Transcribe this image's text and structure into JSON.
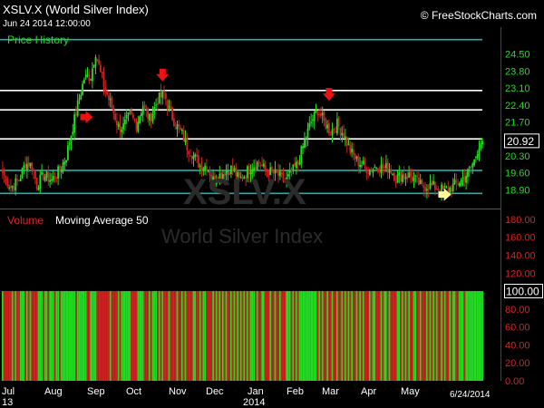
{
  "header": {
    "title": "XSLV.X (World Silver Index)",
    "timestamp": "Jun 24 2014 12:00:00",
    "brand": "© FreeStockCharts.com",
    "bottom_date": "6/24/2014"
  },
  "watermark": {
    "symbol": "XSLV.X",
    "name": "World Silver Index"
  },
  "colors": {
    "up": "#22dd22",
    "down": "#cc2222",
    "price_axis": "#22dd22",
    "volume_axis": "#dd2222",
    "cyan_line": "#21b0b0",
    "white_line": "#ffffff",
    "marker_red": "#ee1111",
    "marker_yellow": "#ffff99"
  },
  "chart_data": [
    {
      "type": "candlestick",
      "panel_label": "Price History",
      "y_ticks": [
        24.5,
        23.8,
        23.1,
        22.4,
        21.7,
        21.0,
        20.3,
        19.6,
        18.9
      ],
      "y_tick_labels": [
        "24.50",
        "23.80",
        "23.10",
        "22.40",
        "21.70",
        "21.00",
        "20.30",
        "19.60",
        "18.90"
      ],
      "ylim": [
        18.2,
        25.5
      ],
      "last_price": 20.92,
      "last_price_label": "20.92",
      "horizontal_lines": [
        {
          "value": 25.1,
          "color": "cyan"
        },
        {
          "value": 23.0,
          "color": "white"
        },
        {
          "value": 22.2,
          "color": "white"
        },
        {
          "value": 21.0,
          "color": "white"
        },
        {
          "value": 19.7,
          "color": "cyan"
        },
        {
          "value": 18.75,
          "color": "cyan"
        }
      ],
      "x_labels": [
        "Jul",
        "Aug",
        "Sep",
        "Oct",
        "Nov",
        "Dec",
        "Jan",
        "Feb",
        "Mar",
        "Apr",
        "May"
      ],
      "x_sublabels": [
        "13",
        "2014"
      ],
      "close_path": [
        [
          0,
          19.6
        ],
        [
          5,
          19.0
        ],
        [
          10,
          19.3
        ],
        [
          14,
          20.0
        ],
        [
          18,
          19.9
        ],
        [
          21,
          19.1
        ],
        [
          25,
          19.5
        ],
        [
          30,
          19.3
        ],
        [
          35,
          19.7
        ],
        [
          39,
          20.3
        ],
        [
          43,
          21.5
        ],
        [
          46,
          22.4
        ],
        [
          50,
          23.5
        ],
        [
          54,
          23.6
        ],
        [
          57,
          24.6
        ],
        [
          60,
          23.7
        ],
        [
          63,
          23.0
        ],
        [
          67,
          22.3
        ],
        [
          71,
          21.5
        ],
        [
          74,
          21.5
        ],
        [
          78,
          22.0
        ],
        [
          82,
          21.6
        ],
        [
          86,
          22.4
        ],
        [
          90,
          21.8
        ],
        [
          95,
          22.6
        ],
        [
          99,
          22.9
        ],
        [
          102,
          22.2
        ],
        [
          106,
          21.6
        ],
        [
          110,
          21.2
        ],
        [
          113,
          20.7
        ],
        [
          117,
          20.3
        ],
        [
          121,
          19.9
        ],
        [
          125,
          19.9
        ],
        [
          129,
          19.3
        ],
        [
          133,
          19.5
        ],
        [
          137,
          19.7
        ],
        [
          141,
          19.8
        ],
        [
          145,
          19.3
        ],
        [
          149,
          19.6
        ],
        [
          153,
          19.9
        ],
        [
          157,
          20.0
        ],
        [
          161,
          19.7
        ],
        [
          165,
          19.6
        ],
        [
          169,
          19.5
        ],
        [
          173,
          19.2
        ],
        [
          177,
          19.6
        ],
        [
          181,
          20.0
        ],
        [
          185,
          20.9
        ],
        [
          189,
          21.7
        ],
        [
          193,
          22.2
        ],
        [
          197,
          21.7
        ],
        [
          201,
          21.3
        ],
        [
          205,
          21.6
        ],
        [
          209,
          21.2
        ],
        [
          213,
          20.5
        ],
        [
          217,
          20.1
        ],
        [
          221,
          19.9
        ],
        [
          225,
          19.7
        ],
        [
          229,
          19.9
        ],
        [
          233,
          19.8
        ],
        [
          237,
          19.8
        ],
        [
          241,
          19.4
        ],
        [
          245,
          19.5
        ],
        [
          249,
          19.5
        ],
        [
          253,
          19.3
        ],
        [
          257,
          19.0
        ],
        [
          261,
          19.1
        ],
        [
          265,
          19.0
        ],
        [
          269,
          18.9
        ],
        [
          273,
          18.9
        ],
        [
          277,
          19.1
        ],
        [
          281,
          19.3
        ],
        [
          285,
          19.6
        ],
        [
          289,
          20.1
        ],
        [
          292,
          20.8
        ],
        [
          294,
          20.92
        ]
      ],
      "annotations": [
        {
          "type": "arrow-down",
          "color": "red",
          "x": 98.5,
          "y": 23.6
        },
        {
          "type": "arrow-right",
          "color": "red",
          "x": 52.5,
          "y": 21.9
        },
        {
          "type": "arrow-down",
          "color": "red",
          "x": 200.5,
          "y": 22.8
        },
        {
          "type": "arrow-right",
          "color": "yellow",
          "x": 272,
          "y": 18.7
        }
      ]
    },
    {
      "type": "bar",
      "panel_label": "Volume",
      "indicator_label": "Moving Average 50",
      "y_ticks": [
        180,
        160,
        140,
        120,
        100,
        80,
        60,
        40,
        20,
        0
      ],
      "y_tick_labels": [
        "180.00",
        "160.00",
        "140.00",
        "120.00",
        "100.00",
        "80.00",
        "60.00",
        "40.00",
        "20.00",
        "0.00"
      ],
      "ylim": [
        0,
        190
      ],
      "value_label": "100.00",
      "constant_value": 100
    }
  ]
}
